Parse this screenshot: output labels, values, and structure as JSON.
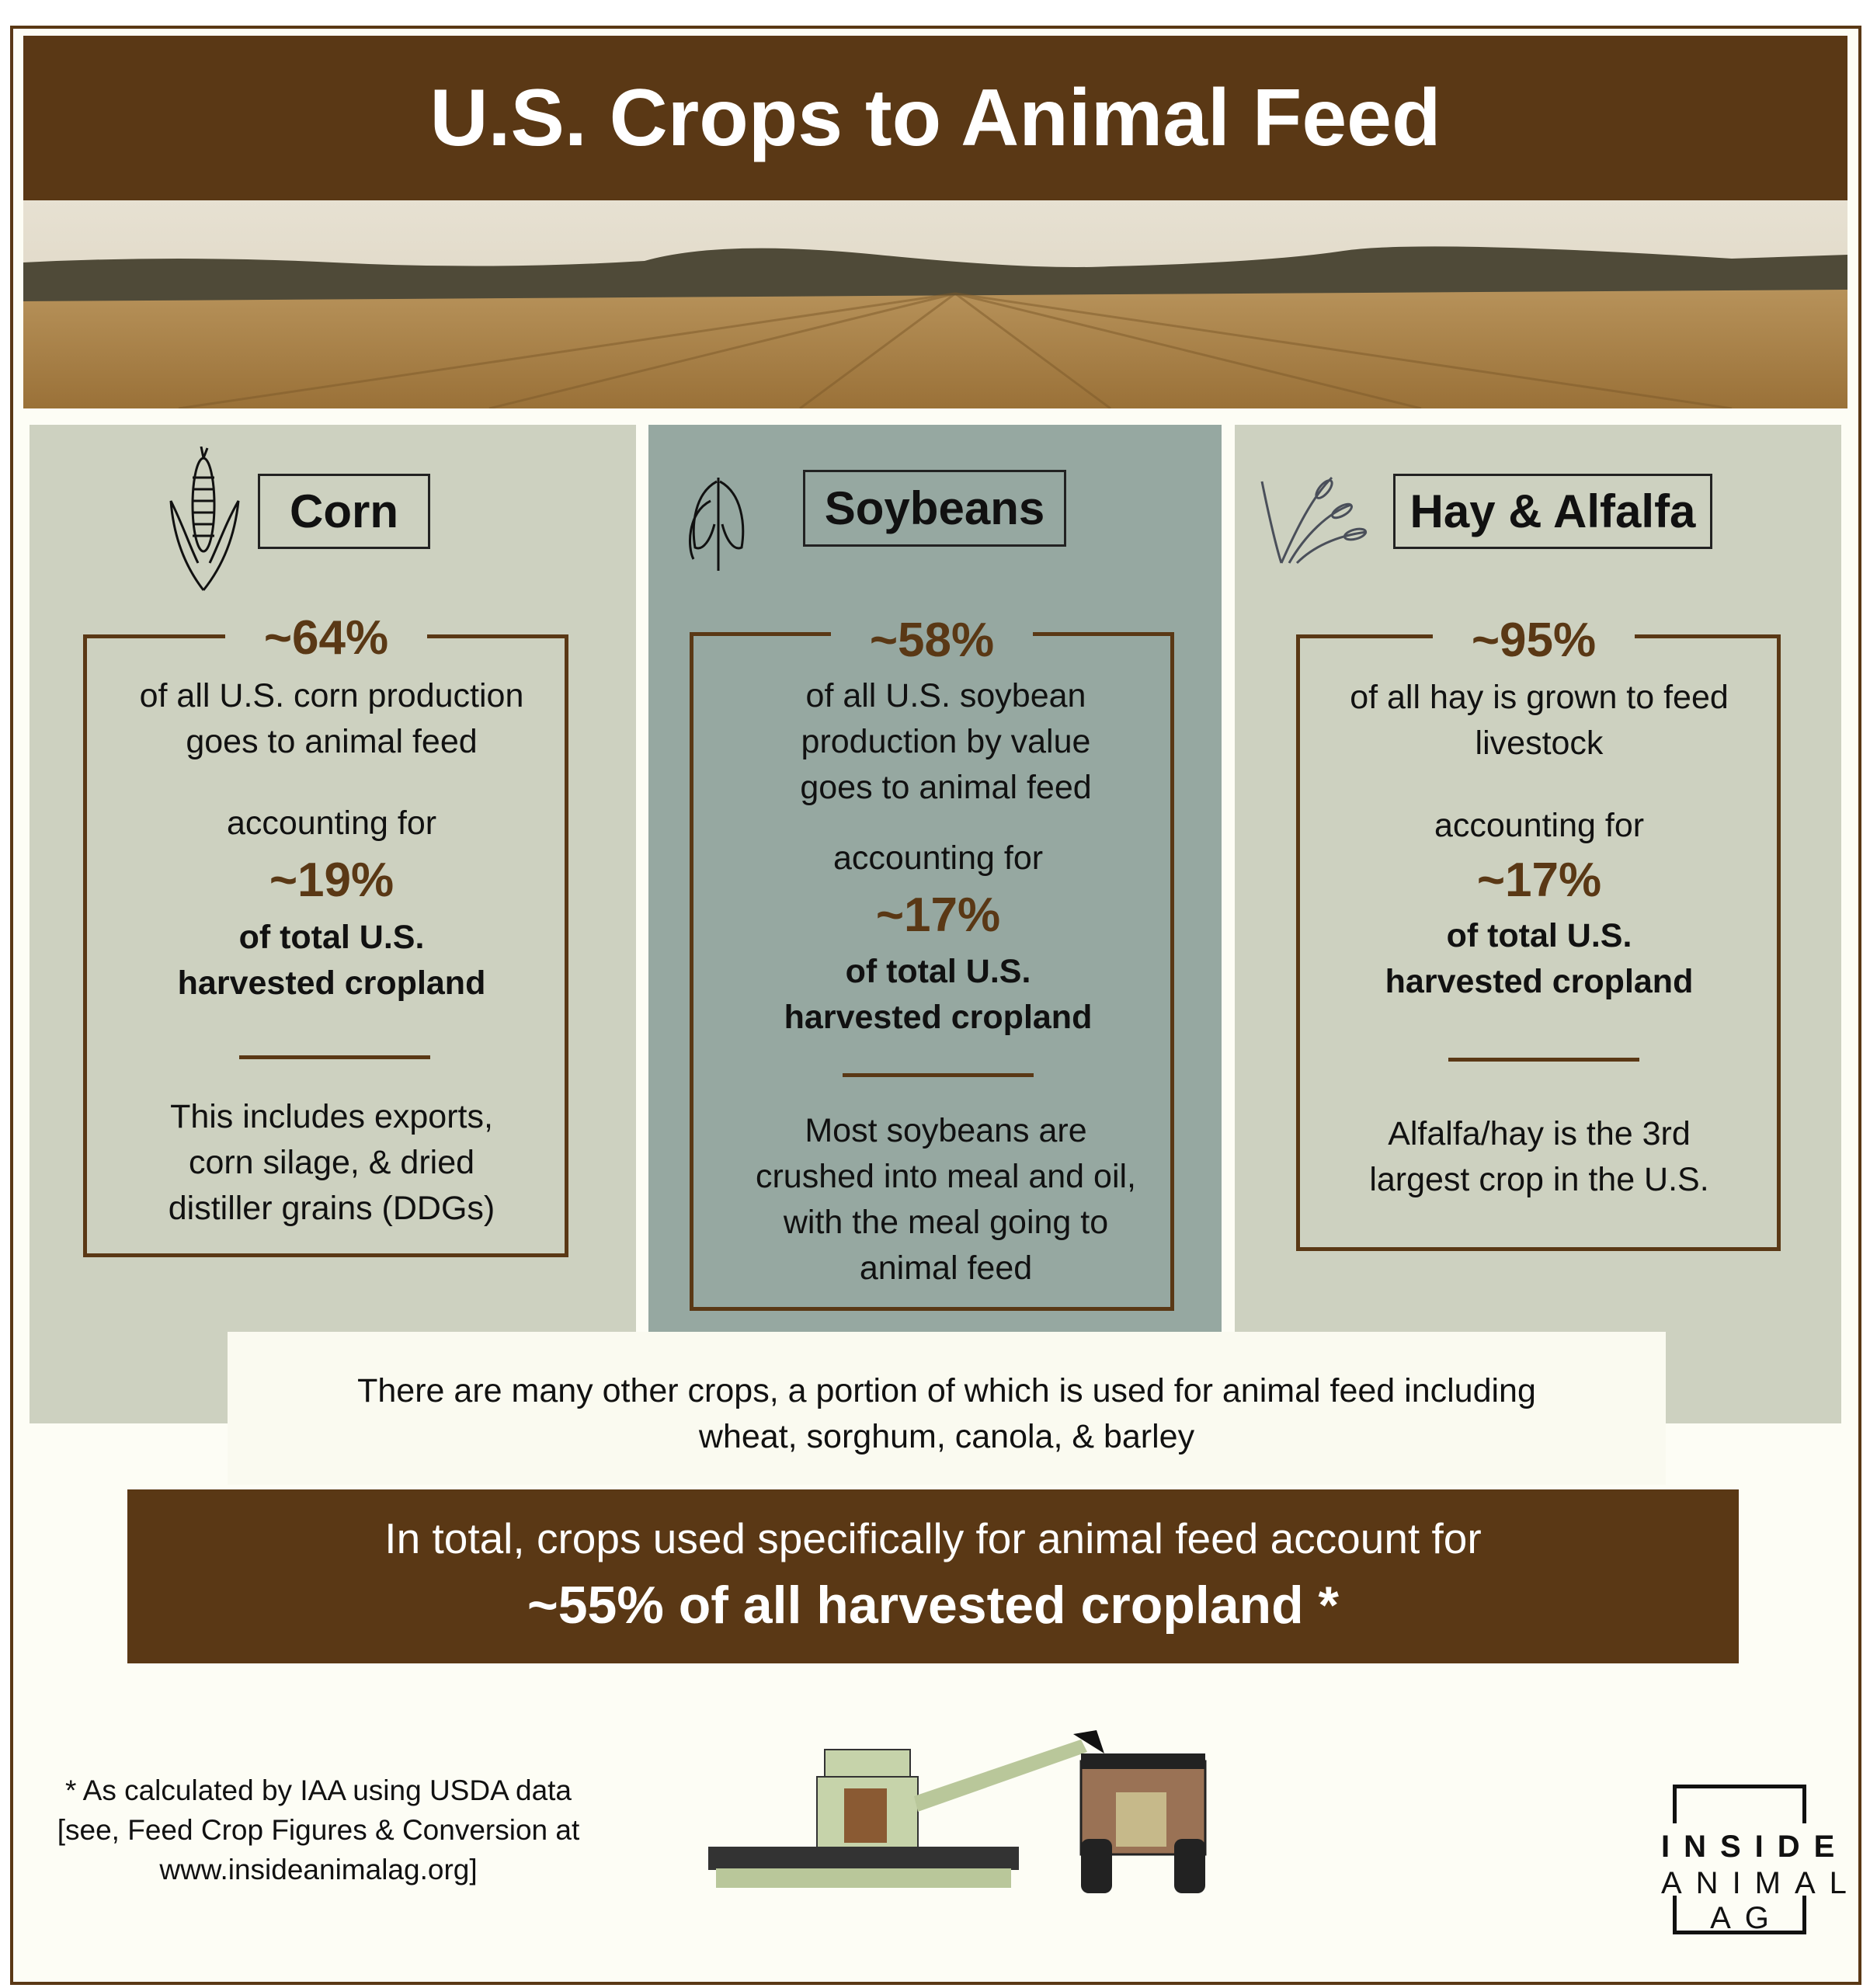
{
  "title": "U.S. Crops to Animal Feed",
  "crops": [
    {
      "name": "Corn",
      "share": "~64%",
      "share_text": "of all U.S. corn production\ngoes to animal feed",
      "accounting": "accounting for",
      "land": "~19%",
      "land_text": "of total U.S.\nharvested cropland",
      "note": "This includes exports,\ncorn silage, & dried\ndistiller grains (DDGs)"
    },
    {
      "name": "Soybeans",
      "share": "~58%",
      "share_text": "of all U.S. soybean\nproduction by value\ngoes to animal feed",
      "accounting": "accounting for",
      "land": "~17%",
      "land_text": "of total U.S.\nharvested cropland",
      "note": "Most soybeans are\ncrushed into meal and oil,\nwith the meal going to\nanimal feed"
    },
    {
      "name": "Hay & Alfalfa",
      "share": "~95%",
      "share_text": "of all hay is grown to feed\nlivestock",
      "accounting": "accounting for",
      "land": "~17%",
      "land_text": "of total U.S.\nharvested cropland",
      "note": "Alfalfa/hay is the 3rd\nlargest crop in the U.S."
    }
  ],
  "other_crops": "There are many other crops, a portion of which is used for animal feed including\nwheat, sorghum, canola, & barley",
  "total": {
    "line1": "In total, crops used specifically for animal feed account for",
    "line2": "~55% of all harvested cropland *"
  },
  "footnote": "* As calculated by IAA using USDA data\n[see, Feed Crop Figures & Conversion at\nwww.insideanimalag.org]",
  "logo": {
    "line1": "INSIDE",
    "line2": "ANIMAL",
    "line3": "AG"
  },
  "colors": {
    "brown": "#5a3815",
    "panel": "#cdd1c0",
    "soy_panel": "#96a8a1",
    "background": "#fdfdf5"
  }
}
